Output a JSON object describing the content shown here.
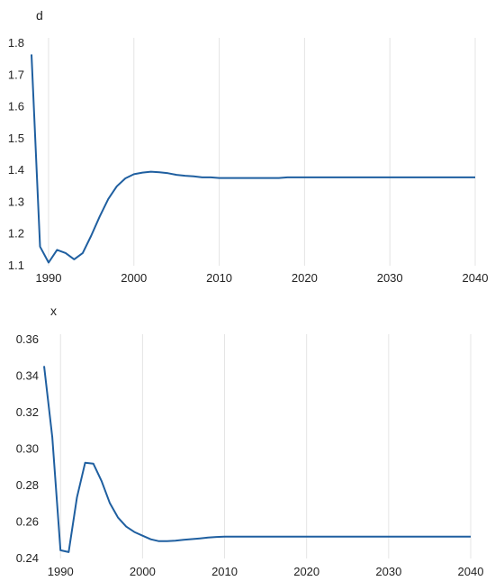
{
  "chart_data": [
    {
      "type": "line",
      "title": "",
      "xlabel": "",
      "ylabel": "d",
      "xlim": [
        1988,
        2040
      ],
      "ylim": [
        1.1,
        1.8
      ],
      "grid": "vertical",
      "xticks": [
        1990,
        2000,
        2010,
        2020,
        2030,
        2040
      ],
      "yticks": [
        "1.1",
        "1.2",
        "1.3",
        "1.4",
        "1.5",
        "1.6",
        "1.7",
        "1.8"
      ],
      "series": [
        {
          "x": [
            1988,
            1989,
            1990,
            1991,
            1992,
            1993,
            1994,
            1995,
            1996,
            1997,
            1998,
            1999,
            2000,
            2001,
            2002,
            2003,
            2004,
            2005,
            2006,
            2007,
            2008,
            2009,
            2010,
            2011,
            2012,
            2013,
            2014,
            2015,
            2016,
            2017,
            2018,
            2019,
            2020,
            2030,
            2040
          ],
          "values": [
            1.765,
            1.16,
            1.11,
            1.15,
            1.14,
            1.12,
            1.14,
            1.195,
            1.255,
            1.31,
            1.35,
            1.375,
            1.388,
            1.393,
            1.396,
            1.394,
            1.391,
            1.386,
            1.383,
            1.381,
            1.378,
            1.378,
            1.376,
            1.376,
            1.376,
            1.376,
            1.376,
            1.376,
            1.376,
            1.376,
            1.378,
            1.378,
            1.378,
            1.378,
            1.378
          ]
        }
      ],
      "colors": {
        "line": "#1f5fa0",
        "grid": "#e4e4e4"
      }
    },
    {
      "type": "line",
      "title": "",
      "xlabel": "",
      "ylabel": "x",
      "xlim": [
        1988,
        2040
      ],
      "ylim": [
        0.24,
        0.36
      ],
      "grid": "vertical",
      "xticks": [
        1990,
        2000,
        2010,
        2020,
        2030,
        2040
      ],
      "yticks": [
        "0.24",
        "0.26",
        "0.28",
        "0.30",
        "0.32",
        "0.34",
        "0.36"
      ],
      "series": [
        {
          "x": [
            1988,
            1989,
            1990,
            1991,
            1992,
            1993,
            1994,
            1995,
            1996,
            1997,
            1998,
            1999,
            2000,
            2001,
            2002,
            2003,
            2004,
            2005,
            2006,
            2007,
            2008,
            2009,
            2010,
            2020,
            2030,
            2040
          ],
          "values": [
            0.3455,
            0.3065,
            0.2445,
            0.2435,
            0.2735,
            0.2925,
            0.292,
            0.2825,
            0.2705,
            0.2625,
            0.2575,
            0.2545,
            0.2525,
            0.2505,
            0.2495,
            0.2495,
            0.2498,
            0.2502,
            0.2506,
            0.251,
            0.2515,
            0.2518,
            0.252,
            0.252,
            0.252,
            0.252
          ]
        }
      ],
      "colors": {
        "line": "#1f5fa0",
        "grid": "#e4e4e4"
      }
    }
  ]
}
